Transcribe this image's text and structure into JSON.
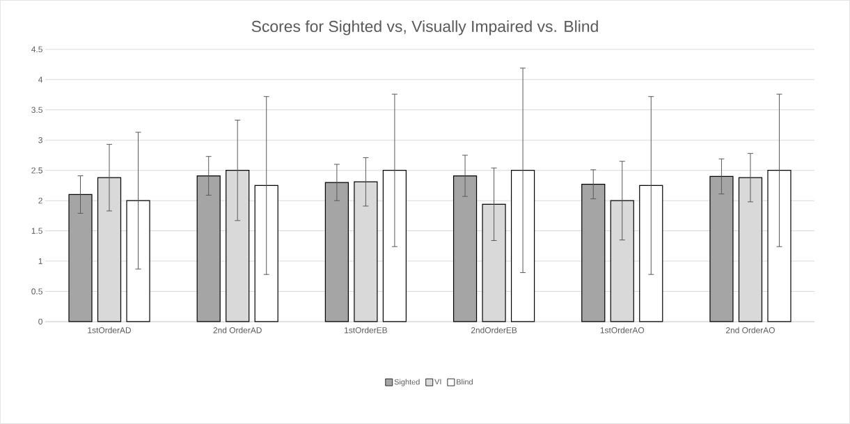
{
  "chart_data": {
    "type": "bar",
    "title": "Scores for Sighted vs, Visually Impaired vs. Blind",
    "categories": [
      "1stOrderAD",
      "2nd OrderAD",
      "1stOrderEB",
      "2ndOrderEB",
      "1stOrderAO",
      "2nd OrderAO"
    ],
    "series": [
      {
        "name": "Sighted",
        "color": "#a5a5a5",
        "values": [
          2.1,
          2.41,
          2.3,
          2.41,
          2.27,
          2.4
        ],
        "errors": [
          0.31,
          0.32,
          0.3,
          0.34,
          0.24,
          0.29
        ]
      },
      {
        "name": "VI",
        "color": "#d9d9d9",
        "values": [
          2.38,
          2.5,
          2.31,
          1.94,
          2.0,
          2.38
        ],
        "errors": [
          0.55,
          0.83,
          0.4,
          0.6,
          0.65,
          0.4
        ]
      },
      {
        "name": "Blind",
        "color": "#ffffff",
        "values": [
          2.0,
          2.25,
          2.5,
          2.5,
          2.25,
          2.5
        ],
        "errors": [
          1.13,
          1.47,
          1.26,
          1.69,
          1.47,
          1.26
        ]
      }
    ],
    "ylim": [
      0,
      4.5
    ],
    "yticks": [
      0,
      0.5,
      1,
      1.5,
      2,
      2.5,
      3,
      3.5,
      4,
      4.5
    ],
    "grid": "y",
    "legend": "bottom"
  }
}
